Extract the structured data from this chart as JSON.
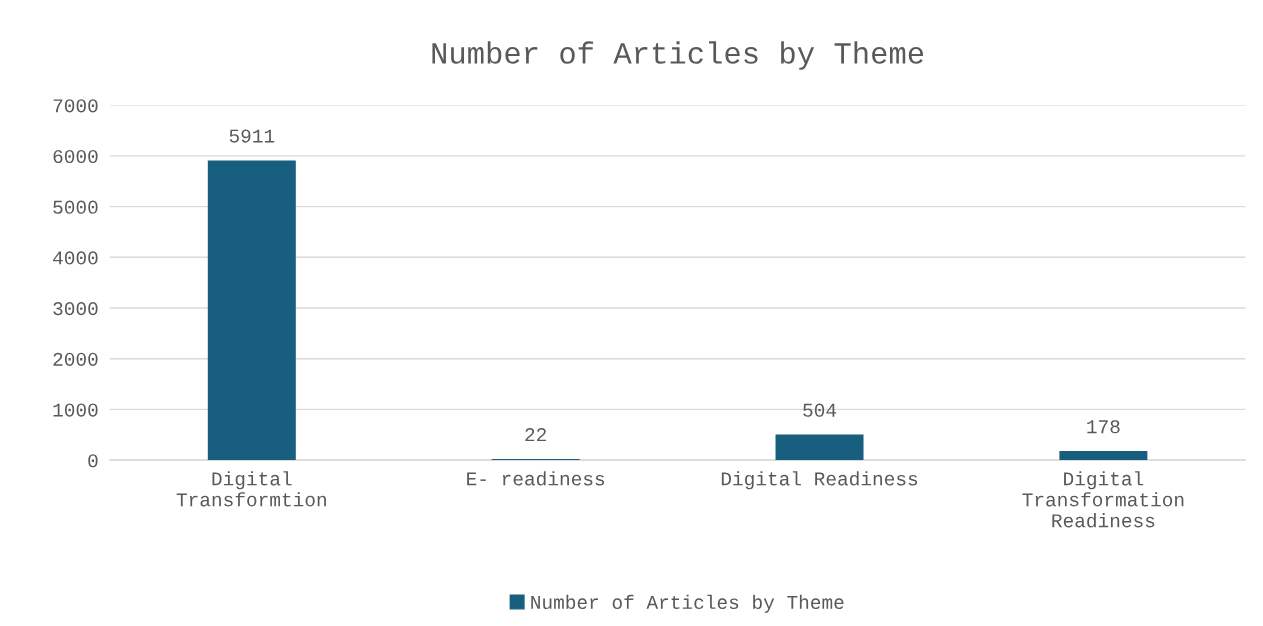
{
  "chart_data": {
    "type": "bar",
    "title": "Number of Articles by Theme",
    "categories": [
      "Digital\nTransformtion",
      "E- readiness",
      "Digital Readiness",
      "Digital\nTransformation\nReadiness"
    ],
    "series": [
      {
        "name": "Number of Articles by Theme",
        "color": "#175e7f",
        "values": [
          5911,
          22,
          504,
          178
        ]
      }
    ],
    "ylim": [
      0,
      7000
    ],
    "yticks": [
      0,
      1000,
      2000,
      3000,
      4000,
      5000,
      6000,
      7000
    ],
    "grid": "y",
    "legend": "bottom",
    "data_labels": true
  }
}
